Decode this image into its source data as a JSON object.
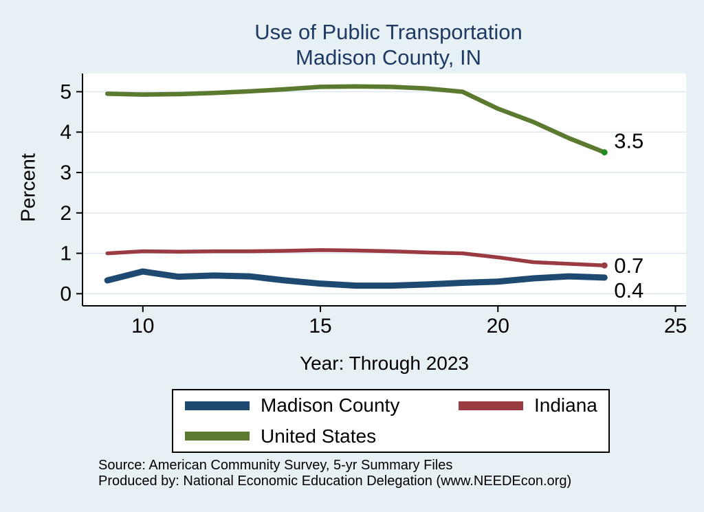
{
  "title": {
    "line1": "Use of Public Transportation",
    "line2": "Madison County, IN"
  },
  "axes": {
    "y_label": "Percent",
    "x_label": "Year: Through 2023"
  },
  "footnotes": {
    "line1": "Source: American Community Survey, 5-yr Summary Files",
    "line2": "Produced by: National Economic Education Delegation (www.NEEDEcon.org)"
  },
  "colors": {
    "page_background": "#e7f0f5",
    "plot_background": "#ffffff",
    "gridline": "#dfe9ee",
    "axis": "#000000",
    "title_text": "#1e3a63",
    "madison_county_line": "#1e4a72",
    "indiana_line": "#9a3b41",
    "united_states_line": "#5a7a30",
    "united_states_marker": "#1f8c1f"
  },
  "chart_data": {
    "type": "line",
    "title": "Use of Public Transportation",
    "subtitle": "Madison County, IN",
    "xlabel": "Year: Through 2023",
    "ylabel": "Percent",
    "xlim": [
      8.3,
      25.3
    ],
    "ylim": [
      -0.3,
      5.45
    ],
    "xticks": [
      10,
      15,
      20,
      25
    ],
    "yticks": [
      0,
      1,
      2,
      3,
      4,
      5
    ],
    "grid": "horizontal",
    "legend_position": "bottom",
    "x": [
      9,
      10,
      11,
      12,
      13,
      14,
      15,
      16,
      17,
      18,
      19,
      20,
      21,
      22,
      23
    ],
    "series": [
      {
        "name": "Madison County",
        "color": "#1e4a72",
        "marker_color": "#1e4a72",
        "values": [
          0.33,
          0.55,
          0.42,
          0.45,
          0.43,
          0.33,
          0.25,
          0.2,
          0.2,
          0.23,
          0.27,
          0.3,
          0.38,
          0.43,
          0.4
        ],
        "end_label": "0.4"
      },
      {
        "name": "Indiana",
        "color": "#9a3b41",
        "marker_color": "#9a3b41",
        "values": [
          1.0,
          1.05,
          1.04,
          1.05,
          1.05,
          1.06,
          1.08,
          1.07,
          1.05,
          1.02,
          1.0,
          0.9,
          0.78,
          0.74,
          0.7
        ],
        "end_label": "0.7"
      },
      {
        "name": "United States",
        "color": "#5a7a30",
        "marker_color": "#1f8c1f",
        "values": [
          4.95,
          4.93,
          4.94,
          4.97,
          5.01,
          5.06,
          5.12,
          5.13,
          5.12,
          5.08,
          5.0,
          4.58,
          4.25,
          3.85,
          3.5
        ],
        "end_label": "3.5"
      }
    ]
  }
}
